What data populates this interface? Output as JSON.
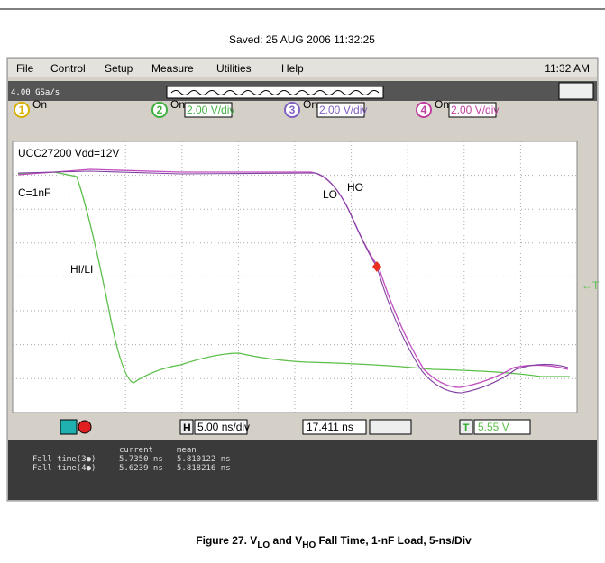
{
  "saved": "Saved:  25 AUG 2006  11:32:25",
  "menu": [
    "File",
    "Control",
    "Setup",
    "Measure",
    "Utilities",
    "Help"
  ],
  "clock": "11:32 AM",
  "sample_rate": "4.00 GSa/s",
  "channels": [
    {
      "number": "1",
      "state": "On"
    },
    {
      "number": "2",
      "state": "On",
      "scale": "2.00 V/div"
    },
    {
      "number": "3",
      "state": "On",
      "scale": "2.00 V/div"
    },
    {
      "number": "4",
      "state": "On",
      "scale": "2.00 V/div"
    }
  ],
  "traces": {
    "title": "UCC27200 Vdd=12V",
    "load": "C=1nF",
    "lo": "LO",
    "ho": "HO",
    "input": "HI/LI",
    "trigger_marker": "←T"
  },
  "controls": {
    "h": "H",
    "timebase": "5.00 ns/div",
    "delay": "17.411 ns",
    "t": "T",
    "trigger_level": "5.55 V"
  },
  "measurements": {
    "headers": [
      "current",
      "mean"
    ],
    "rows": [
      [
        "Fall time(3●)",
        "5.7350 ns",
        "5.810122 ns"
      ],
      [
        "Fall time(4●)",
        "5.6239 ns",
        "5.818216 ns"
      ]
    ]
  },
  "caption": [
    "Figure 27. V",
    "LO",
    " and V",
    "HO",
    " Fall Time, 1-nF Load, 5-ns/Div"
  ]
}
